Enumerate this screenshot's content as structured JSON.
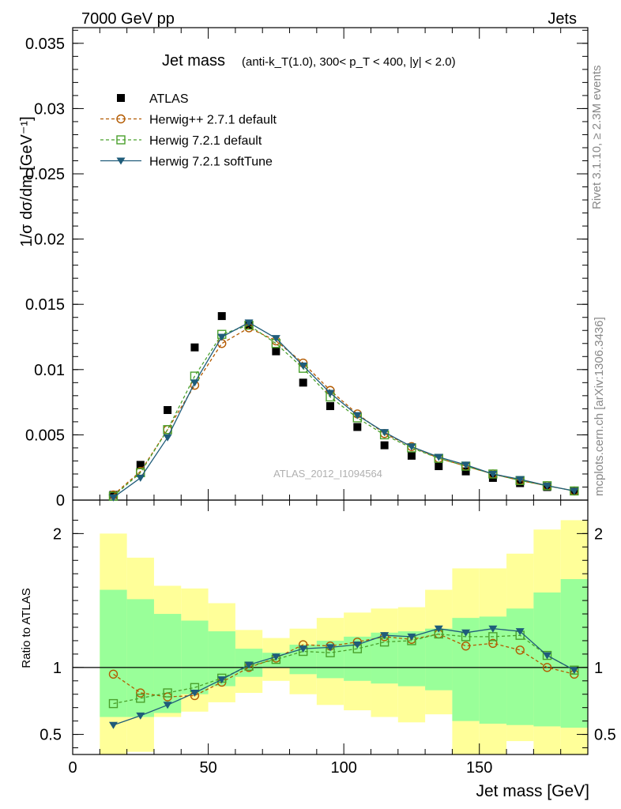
{
  "header": {
    "left": "7000 GeV pp",
    "right": "Jets"
  },
  "side_labels": {
    "rivet": "Rivet 3.1.10, ≥ 2.3M events",
    "mcplots": "mcplots.cern.ch [arXiv:1306.3436]"
  },
  "chart_data": [
    {
      "type": "scatter",
      "panel": "main",
      "title": "Jet mass",
      "subtitle": "(anti-k_T(1.0), 300< p_T < 400, |y| < 2.0)",
      "ylabel": "1/σ dσ/dm [GeV⁻¹]",
      "watermark": "ATLAS_2012_I1094564",
      "xlim": [
        0,
        190
      ],
      "ylim": [
        0,
        0.0362
      ],
      "y_ticks": [
        0,
        0.005,
        0.01,
        0.015,
        0.02,
        0.025,
        0.03,
        0.035
      ],
      "y_tick_labels": [
        "0",
        "0.005",
        "0.01",
        "0.015",
        "0.02",
        "0.025",
        "0.03",
        "0.035"
      ],
      "x": [
        15,
        25,
        35,
        45,
        55,
        65,
        75,
        85,
        95,
        105,
        115,
        125,
        135,
        145,
        155,
        165,
        175,
        185
      ],
      "series": [
        {
          "name": "ATLAS",
          "color": "#000000",
          "marker": "square-filled",
          "line": "none",
          "values": [
            0.0004,
            0.0027,
            0.0069,
            0.0117,
            0.0141,
            0.0134,
            0.0114,
            0.009,
            0.0072,
            0.0056,
            0.0042,
            0.0034,
            0.0026,
            0.0022,
            0.0017,
            0.0013,
            0.001,
            0.0007
          ]
        },
        {
          "name": "Herwig++ 2.7.1 default",
          "color": "#b35a00",
          "marker": "circle-open",
          "line": "dashed",
          "values": [
            0.0004,
            0.0022,
            0.0054,
            0.0088,
            0.012,
            0.0132,
            0.0122,
            0.0105,
            0.0084,
            0.0066,
            0.0051,
            0.0041,
            0.0032,
            0.0026,
            0.002,
            0.0015,
            0.0011,
            0.0007
          ]
        },
        {
          "name": "Herwig 7.2.1 default",
          "color": "#4aa02c",
          "marker": "square-open",
          "line": "dashed",
          "values": [
            0.0003,
            0.0021,
            0.0054,
            0.0095,
            0.0127,
            0.0134,
            0.012,
            0.0101,
            0.0079,
            0.0063,
            0.005,
            0.004,
            0.0032,
            0.0026,
            0.002,
            0.0015,
            0.0011,
            0.0007
          ]
        },
        {
          "name": "Herwig 7.2.1 softTune",
          "color": "#1f5c7a",
          "marker": "triangle-down-filled",
          "line": "solid",
          "values": [
            0.0002,
            0.0017,
            0.0048,
            0.009,
            0.0125,
            0.0136,
            0.0124,
            0.0103,
            0.0082,
            0.0065,
            0.0052,
            0.0041,
            0.0033,
            0.0027,
            0.002,
            0.0016,
            0.0011,
            0.0007
          ]
        }
      ]
    },
    {
      "type": "line",
      "panel": "ratio",
      "ylabel": "Ratio to ATLAS",
      "xlabel": "Jet mass [GeV]",
      "xlim": [
        0,
        190
      ],
      "ylim": [
        0.35,
        2.25
      ],
      "x_ticks": [
        0,
        50,
        100,
        150
      ],
      "x_tick_labels": [
        "0",
        "50",
        "100",
        "150"
      ],
      "y_ticks": [
        0.5,
        1,
        2
      ],
      "y_tick_labels": [
        "0.5",
        "1",
        "2"
      ],
      "bins": [
        [
          10,
          20
        ],
        [
          20,
          30
        ],
        [
          30,
          40
        ],
        [
          40,
          50
        ],
        [
          50,
          60
        ],
        [
          60,
          70
        ],
        [
          70,
          80
        ],
        [
          80,
          90
        ],
        [
          90,
          100
        ],
        [
          100,
          110
        ],
        [
          110,
          120
        ],
        [
          120,
          130
        ],
        [
          130,
          140
        ],
        [
          140,
          150
        ],
        [
          150,
          160
        ],
        [
          160,
          170
        ],
        [
          170,
          180
        ],
        [
          180,
          190
        ]
      ],
      "band_1sigma": {
        "color": "#99ff99",
        "low": [
          0.63,
          0.63,
          0.66,
          0.8,
          0.86,
          0.93,
          1.0,
          0.95,
          0.92,
          0.9,
          0.88,
          0.86,
          0.83,
          0.6,
          0.58,
          0.57,
          0.56,
          0.55
        ],
        "high": [
          1.58,
          1.51,
          1.4,
          1.35,
          1.27,
          1.14,
          1.11,
          1.17,
          1.2,
          1.23,
          1.26,
          1.27,
          1.29,
          1.37,
          1.38,
          1.44,
          1.56,
          1.66
        ]
      },
      "band_2sigma": {
        "color": "#ffff99",
        "low": [
          0.35,
          0.37,
          0.63,
          0.67,
          0.74,
          0.81,
          0.9,
          0.8,
          0.72,
          0.68,
          0.63,
          0.59,
          0.65,
          0.35,
          0.35,
          0.45,
          0.35,
          0.35
        ],
        "high": [
          2.0,
          1.82,
          1.61,
          1.59,
          1.48,
          1.28,
          1.22,
          1.29,
          1.37,
          1.41,
          1.44,
          1.45,
          1.58,
          1.74,
          1.74,
          1.85,
          2.03,
          2.1
        ]
      },
      "series": [
        {
          "name": "Herwig++ 2.7.1 default",
          "color": "#b35a00",
          "marker": "circle-open",
          "line": "dashed",
          "values": [
            0.95,
            0.81,
            0.78,
            0.79,
            0.89,
            1.0,
            1.07,
            1.17,
            1.16,
            1.19,
            1.23,
            1.21,
            1.25,
            1.16,
            1.18,
            1.13,
            1.0,
            0.95
          ]
        },
        {
          "name": "Herwig 7.2.1 default",
          "color": "#4aa02c",
          "marker": "square-open",
          "line": "dashed",
          "values": [
            0.73,
            0.77,
            0.81,
            0.85,
            0.92,
            1.01,
            1.06,
            1.12,
            1.11,
            1.14,
            1.19,
            1.2,
            1.25,
            1.23,
            1.23,
            1.24,
            1.09,
            0.98
          ]
        },
        {
          "name": "Herwig 7.2.1 softTune",
          "color": "#1f5c7a",
          "marker": "triangle-down-filled",
          "line": "solid",
          "values": [
            0.57,
            0.64,
            0.72,
            0.81,
            0.91,
            1.02,
            1.08,
            1.14,
            1.15,
            1.17,
            1.24,
            1.23,
            1.29,
            1.26,
            1.29,
            1.27,
            1.09,
            0.98
          ]
        }
      ]
    }
  ]
}
